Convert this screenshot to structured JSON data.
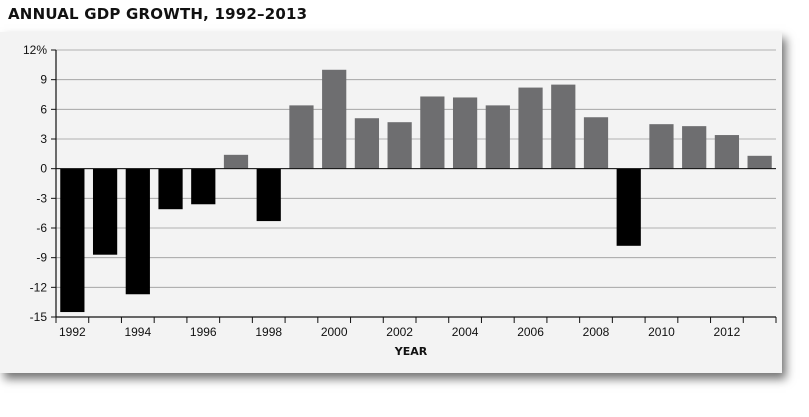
{
  "chart_data": {
    "type": "bar",
    "title": "ANNUAL GDP GROWTH, 1992–2013",
    "xlabel": "YEAR",
    "ylabel": "",
    "x": [
      1992,
      1993,
      1994,
      1995,
      1996,
      1997,
      1998,
      1999,
      2000,
      2001,
      2002,
      2003,
      2004,
      2005,
      2006,
      2007,
      2008,
      2009,
      2010,
      2011,
      2012,
      2013
    ],
    "values": [
      -14.5,
      -8.7,
      -12.7,
      -4.1,
      -3.6,
      1.4,
      -5.3,
      6.4,
      10.0,
      5.1,
      4.7,
      7.3,
      7.2,
      6.4,
      8.2,
      8.5,
      5.2,
      -7.8,
      4.5,
      4.3,
      3.4,
      1.3
    ],
    "ylim": [
      -15,
      12
    ],
    "yticks": [
      12,
      9,
      6,
      3,
      0,
      -3,
      -6,
      -9,
      -12,
      -15
    ],
    "ytick_labels": [
      "12%",
      "9",
      "6",
      "3",
      "0",
      "-3",
      "-6",
      "-9",
      "-12",
      "-15"
    ],
    "xtick_labels": [
      "1992",
      "1994",
      "1996",
      "1998",
      "2000",
      "2002",
      "2004",
      "2006",
      "2008",
      "2010",
      "2012"
    ],
    "grid": true,
    "colors": {
      "negative": "#000000",
      "positive": "#6e6e70",
      "panel": "#f3f3f3",
      "grid": "#9a9a9a"
    }
  }
}
